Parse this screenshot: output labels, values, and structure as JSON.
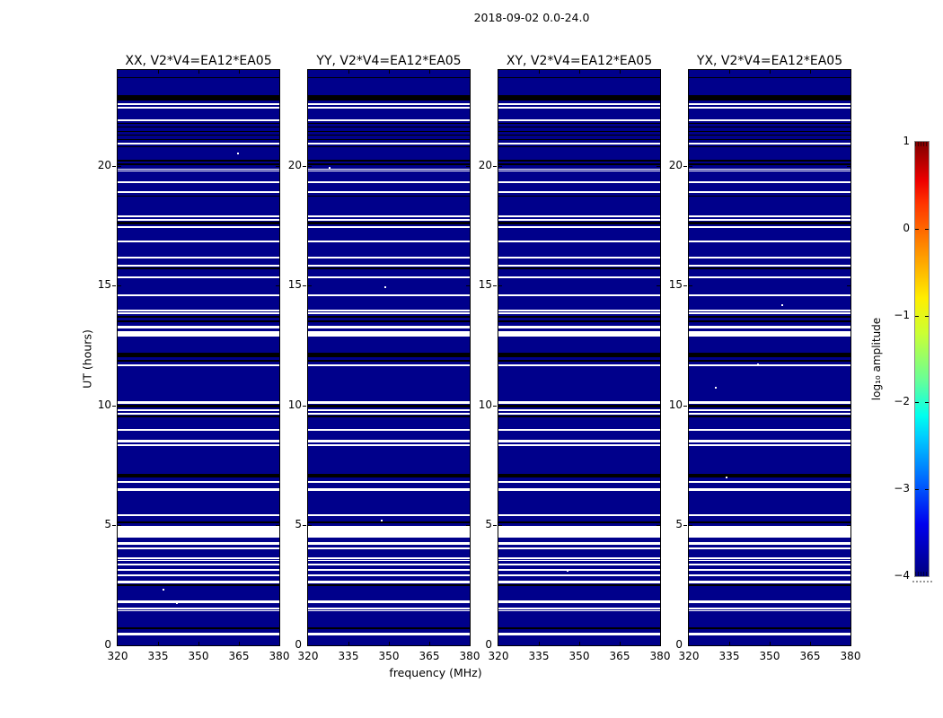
{
  "figure": {
    "suptitle": "2018-09-02 0.0-24.0",
    "xlabel": "frequency (MHz)",
    "ylabel": "UT (hours)",
    "colorbar_label": "log₁₀ amplitude"
  },
  "chart_data": {
    "type": "heatmap",
    "title": "2018-09-02 0.0-24.0",
    "xlabel": "frequency (MHz)",
    "ylabel": "UT (hours)",
    "xlim": [
      320,
      385
    ],
    "ylim": [
      0,
      24
    ],
    "xticks": [
      320,
      335,
      350,
      365,
      380
    ],
    "yticks": [
      0,
      5,
      10,
      15,
      20
    ],
    "grid": false,
    "colorbar": {
      "label": "log₁₀ amplitude",
      "tick_labels": [
        "1",
        "0",
        "−1",
        "−2",
        "−3",
        "−4"
      ],
      "vmin": -4,
      "vmax": 1,
      "colormap": "jet",
      "position": "right"
    },
    "colors": {
      "background_value_color": "#00008b",
      "white_stripe": "#ffffff",
      "black_stripe": "#000000"
    },
    "jet_gradient_top_to_bottom": [
      "#7f0000 0%",
      "#ee0000 9%",
      "#ff3300 14%",
      "#ff9900 26%",
      "#ffee00 36%",
      "#ccff33 44%",
      "#66ff99 55%",
      "#00ffee 63%",
      "#00ccff 68%",
      "#0066ff 78%",
      "#0000ee 88%",
      "#00007f 100%"
    ],
    "panels": [
      {
        "title": "XX, V2*V4=EA12*EA05",
        "dots": [
          [
            0.74,
            92
          ],
          [
            0.28,
            578
          ],
          [
            0.36,
            593
          ]
        ]
      },
      {
        "title": "YY, V2*V4=EA12*EA05",
        "dots": [
          [
            0.13,
            108
          ],
          [
            0.47,
            241
          ],
          [
            0.45,
            501
          ]
        ]
      },
      {
        "title": "XY, V2*V4=EA12*EA05",
        "dots": [
          [
            0.37,
            135
          ],
          [
            0.42,
            557
          ]
        ]
      },
      {
        "title": "YX, V2*V4=EA12*EA05",
        "dots": [
          [
            0.57,
            261
          ],
          [
            0.42,
            327
          ],
          [
            0.16,
            353
          ],
          [
            0.23,
            453
          ]
        ]
      }
    ],
    "stripes": [
      [
        8,
        1,
        "k"
      ],
      [
        28,
        6,
        "k"
      ],
      [
        37,
        2,
        "w"
      ],
      [
        41,
        2,
        "w"
      ],
      [
        55,
        2,
        "w"
      ],
      [
        59,
        1,
        "k"
      ],
      [
        63,
        1,
        "k"
      ],
      [
        68,
        1,
        "k"
      ],
      [
        72,
        1,
        "k"
      ],
      [
        77,
        1,
        "k"
      ],
      [
        81,
        2,
        "w"
      ],
      [
        85,
        1,
        "k"
      ],
      [
        100,
        2,
        "k"
      ],
      [
        104,
        2,
        "k"
      ],
      [
        110,
        1,
        "w"
      ],
      [
        112,
        1,
        "w"
      ],
      [
        124,
        2,
        "w"
      ],
      [
        135,
        2,
        "w"
      ],
      [
        140,
        1,
        "k"
      ],
      [
        162,
        2,
        "w"
      ],
      [
        166,
        2,
        "w"
      ],
      [
        169,
        3,
        "k"
      ],
      [
        174,
        2,
        "w"
      ],
      [
        190,
        2,
        "w"
      ],
      [
        208,
        2,
        "w"
      ],
      [
        217,
        2,
        "w"
      ],
      [
        220,
        2,
        "k"
      ],
      [
        230,
        2,
        "w"
      ],
      [
        250,
        2,
        "w"
      ],
      [
        267,
        2,
        "w"
      ],
      [
        270,
        2,
        "w"
      ],
      [
        274,
        2,
        "k"
      ],
      [
        279,
        2,
        "k"
      ],
      [
        285,
        3,
        "w"
      ],
      [
        291,
        6,
        "w"
      ],
      [
        315,
        5,
        "k"
      ],
      [
        323,
        2,
        "k"
      ],
      [
        328,
        2,
        "w"
      ],
      [
        369,
        3,
        "w"
      ],
      [
        373,
        3,
        "k"
      ],
      [
        378,
        2,
        "w"
      ],
      [
        382,
        2,
        "w"
      ],
      [
        385,
        2,
        "k"
      ],
      [
        400,
        2,
        "w"
      ],
      [
        412,
        3,
        "w"
      ],
      [
        417,
        2,
        "w"
      ],
      [
        450,
        4,
        "k"
      ],
      [
        458,
        2,
        "w"
      ],
      [
        466,
        3,
        "w"
      ],
      [
        495,
        2,
        "w"
      ],
      [
        503,
        2,
        "k"
      ],
      [
        508,
        13,
        "w"
      ],
      [
        526,
        3,
        "w"
      ],
      [
        532,
        2,
        "w"
      ],
      [
        543,
        2,
        "w"
      ],
      [
        546,
        1,
        "w"
      ],
      [
        550,
        2,
        "w"
      ],
      [
        556,
        2,
        "w"
      ],
      [
        562,
        2,
        "w"
      ],
      [
        569,
        3,
        "w"
      ],
      [
        573,
        2,
        "k"
      ],
      [
        591,
        3,
        "w"
      ],
      [
        599,
        2,
        "w"
      ],
      [
        602,
        1,
        "w"
      ],
      [
        621,
        2,
        "k"
      ],
      [
        627,
        3,
        "w"
      ]
    ]
  }
}
